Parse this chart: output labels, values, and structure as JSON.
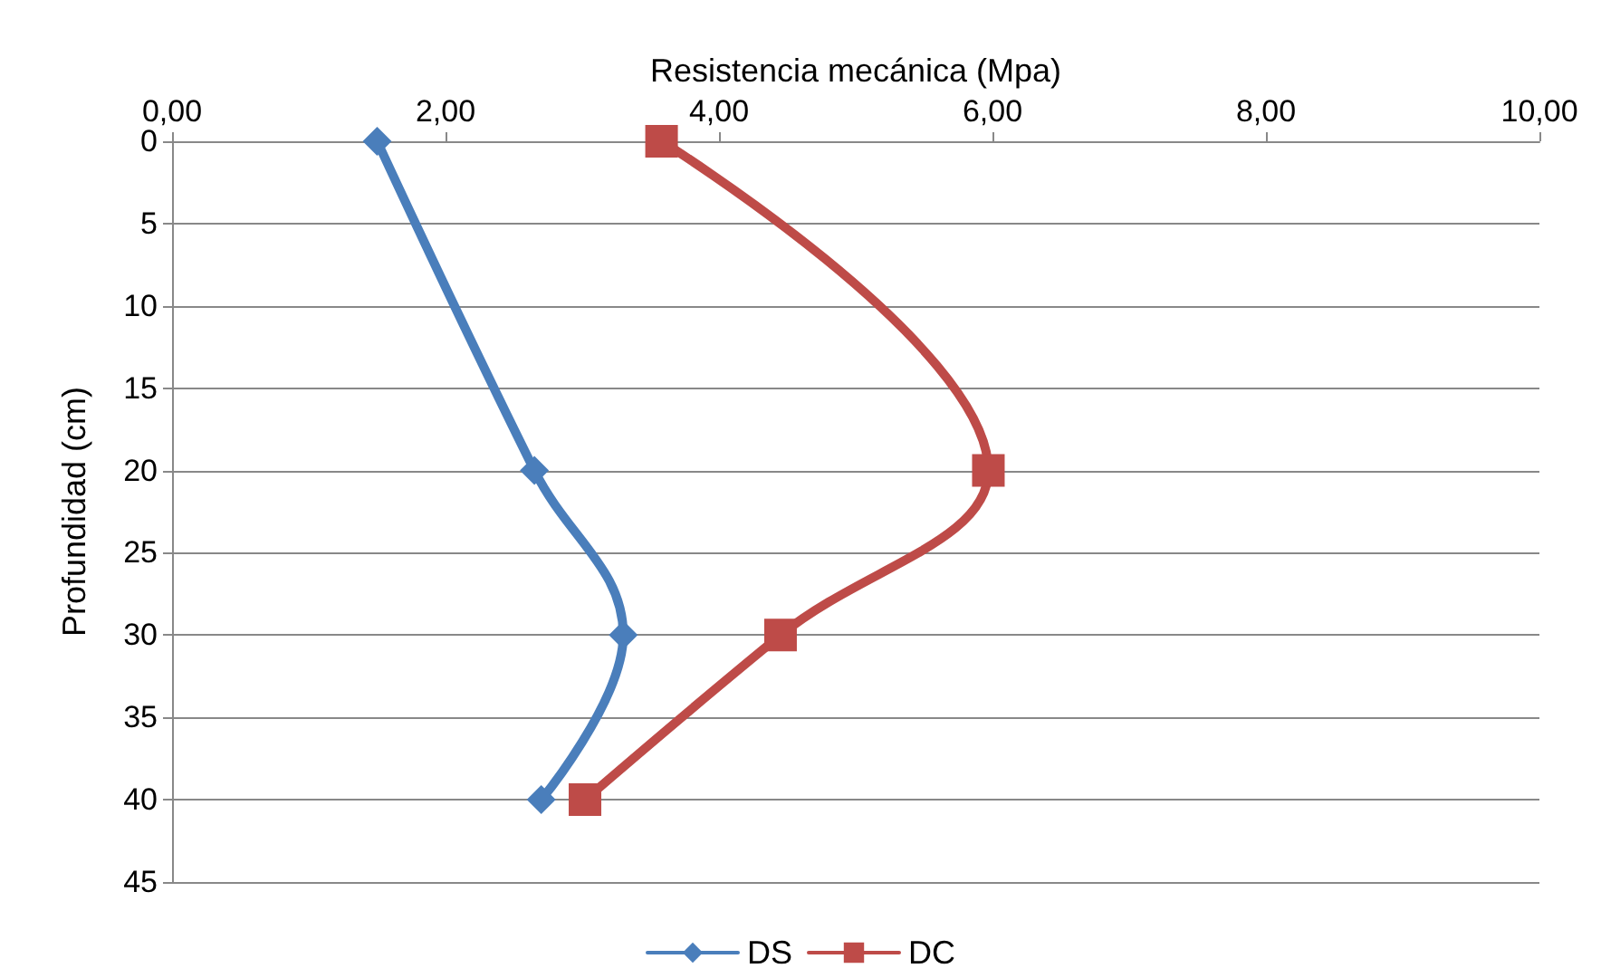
{
  "chart_data": {
    "type": "line",
    "xlabel": "Resistencia mecánica (Mpa)",
    "ylabel": "Profundidad (cm)",
    "xlim": [
      0,
      10
    ],
    "xticks": [
      {
        "value": 0,
        "label": "0,00"
      },
      {
        "value": 2,
        "label": "2,00"
      },
      {
        "value": 4,
        "label": "4,00"
      },
      {
        "value": 6,
        "label": "6,00"
      },
      {
        "value": 8,
        "label": "8,00"
      },
      {
        "value": 10,
        "label": "10,00"
      }
    ],
    "ylim": [
      45,
      0
    ],
    "yticks": [
      0,
      5,
      10,
      15,
      20,
      25,
      30,
      35,
      40,
      45
    ],
    "grid": "y",
    "legend": "bottom",
    "line_style": "solid",
    "series": [
      {
        "name": "DS",
        "color": "#4a7ebb",
        "marker": "diamond",
        "x": [
          1.5,
          2.65,
          3.3,
          2.7
        ],
        "values": [
          0,
          20,
          30,
          40
        ]
      },
      {
        "name": "DC",
        "color": "#be4b48",
        "marker": "square",
        "x": [
          3.58,
          5.97,
          4.45,
          3.02
        ],
        "values": [
          0,
          20,
          30,
          40
        ]
      }
    ]
  }
}
